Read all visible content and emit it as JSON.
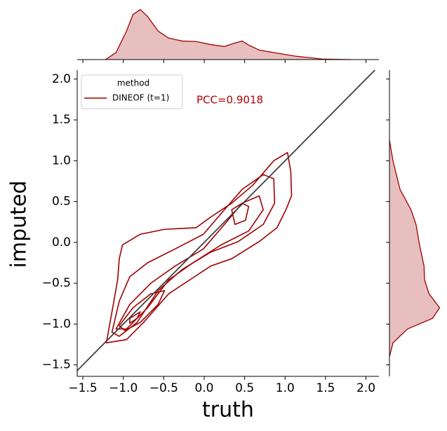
{
  "chart_data": {
    "type": "kde-joint",
    "xlabel": "truth",
    "ylabel": "imputed",
    "annotation": "PCC=0.9018",
    "legend": {
      "title": "method",
      "position": "upper left"
    },
    "series": [
      {
        "name": "DINEOF (t=1)",
        "color": "#a00000"
      }
    ],
    "identity_line": {
      "color": "#3f3f3f"
    },
    "xlim": [
      -1.57,
      2.16
    ],
    "ylim": [
      -1.64,
      2.11
    ],
    "xticks": [
      {
        "value": -1.5,
        "label": "−1.5"
      },
      {
        "value": -1,
        "label": "−1.0"
      },
      {
        "value": -0.5,
        "label": "−0.5"
      },
      {
        "value": 0,
        "label": "0.0"
      },
      {
        "value": 0.5,
        "label": "0.5"
      },
      {
        "value": 1,
        "label": "1.0"
      },
      {
        "value": 1.5,
        "label": "1.5"
      },
      {
        "value": 2,
        "label": "2.0"
      }
    ],
    "yticks": [
      {
        "value": -1.5,
        "label": "−1.5"
      },
      {
        "value": -1,
        "label": "−1.0"
      },
      {
        "value": -0.5,
        "label": "−0.5"
      },
      {
        "value": 0,
        "label": "0.0"
      },
      {
        "value": 0.5,
        "label": "0.5"
      },
      {
        "value": 1,
        "label": "1.0"
      },
      {
        "value": 1.5,
        "label": "1.5"
      },
      {
        "value": 2,
        "label": "2.0"
      }
    ],
    "contours": [
      {
        "x": [
          -1.21,
          -1.14,
          -1.07,
          -1.05,
          -1.01,
          -0.79,
          -0.49,
          -0.1,
          0.08,
          0.34,
          0.6,
          0.86,
          1.03,
          1.07,
          1.08,
          1.01,
          0.9,
          0.68,
          0.34,
          0.08,
          -0.18,
          -0.44,
          -0.75,
          -0.96
        ],
        "y": [
          -1.23,
          -0.85,
          -0.46,
          -0.2,
          -0.03,
          0.1,
          0.16,
          0.18,
          0.31,
          0.48,
          0.7,
          1.0,
          1.1,
          0.87,
          0.57,
          0.4,
          0.18,
          0.01,
          -0.2,
          -0.29,
          -0.46,
          -0.63,
          -0.98,
          -1.19
        ]
      },
      {
        "x": [
          -1.14,
          -1.05,
          -0.92,
          -0.7,
          -0.36,
          -0.01,
          0.25,
          0.47,
          0.73,
          0.86,
          0.87,
          0.73,
          0.42,
          0.08,
          -0.27,
          -0.57,
          -0.83,
          -1.05
        ],
        "y": [
          -1.1,
          -0.72,
          -0.42,
          -0.25,
          -0.08,
          0.1,
          0.4,
          0.65,
          0.83,
          0.78,
          0.48,
          0.22,
          0.01,
          -0.12,
          -0.33,
          -0.59,
          -0.98,
          -1.15
        ]
      },
      {
        "x": [
          -1.09,
          -0.92,
          -0.66,
          -0.36,
          -0.01,
          0.25,
          0.47,
          0.68,
          0.73,
          0.55,
          0.21,
          -0.14,
          -0.44,
          -0.7,
          -0.96
        ],
        "y": [
          -1.06,
          -0.76,
          -0.5,
          -0.29,
          -0.08,
          0.22,
          0.48,
          0.57,
          0.4,
          0.14,
          -0.03,
          -0.25,
          -0.46,
          -0.8,
          -1.06
        ]
      },
      {
        "x": [
          -1.05,
          -0.88,
          -0.66,
          -0.49,
          -0.57,
          -0.79,
          -0.98
        ],
        "y": [
          -1.02,
          -0.8,
          -0.63,
          -0.59,
          -0.76,
          -0.98,
          -1.08
        ]
      },
      {
        "x": [
          0.34,
          0.47,
          0.55,
          0.51,
          0.38
        ],
        "y": [
          0.4,
          0.48,
          0.44,
          0.27,
          0.22
        ]
      },
      {
        "x": [
          -0.92,
          -0.79,
          -0.83,
          -0.92
        ],
        "y": [
          -0.93,
          -0.85,
          -0.93,
          -0.99
        ]
      }
    ],
    "marginal_x": {
      "x": [
        -1.22,
        -1.09,
        -0.96,
        -0.88,
        -0.79,
        -0.7,
        -0.57,
        -0.44,
        -0.27,
        -0.1,
        0.08,
        0.25,
        0.38,
        0.47,
        0.55,
        0.68,
        0.86,
        1.12,
        1.46,
        1.81
      ],
      "density": [
        0,
        0.14,
        0.57,
        0.9,
        1.0,
        0.86,
        0.57,
        0.43,
        0.37,
        0.36,
        0.3,
        0.26,
        0.33,
        0.37,
        0.29,
        0.19,
        0.14,
        0.07,
        0.01,
        0
      ]
    },
    "marginal_y": {
      "y": [
        1.25,
        1.0,
        0.65,
        0.4,
        0.22,
        -0.03,
        -0.29,
        -0.46,
        -0.63,
        -0.8,
        -0.93,
        -1.06,
        -1.23,
        -1.4
      ],
      "density": [
        0,
        0.07,
        0.21,
        0.43,
        0.53,
        0.6,
        0.69,
        0.7,
        0.79,
        1.0,
        0.86,
        0.36,
        0.07,
        0
      ]
    },
    "density_lim": [
      0,
      1.05
    ]
  }
}
